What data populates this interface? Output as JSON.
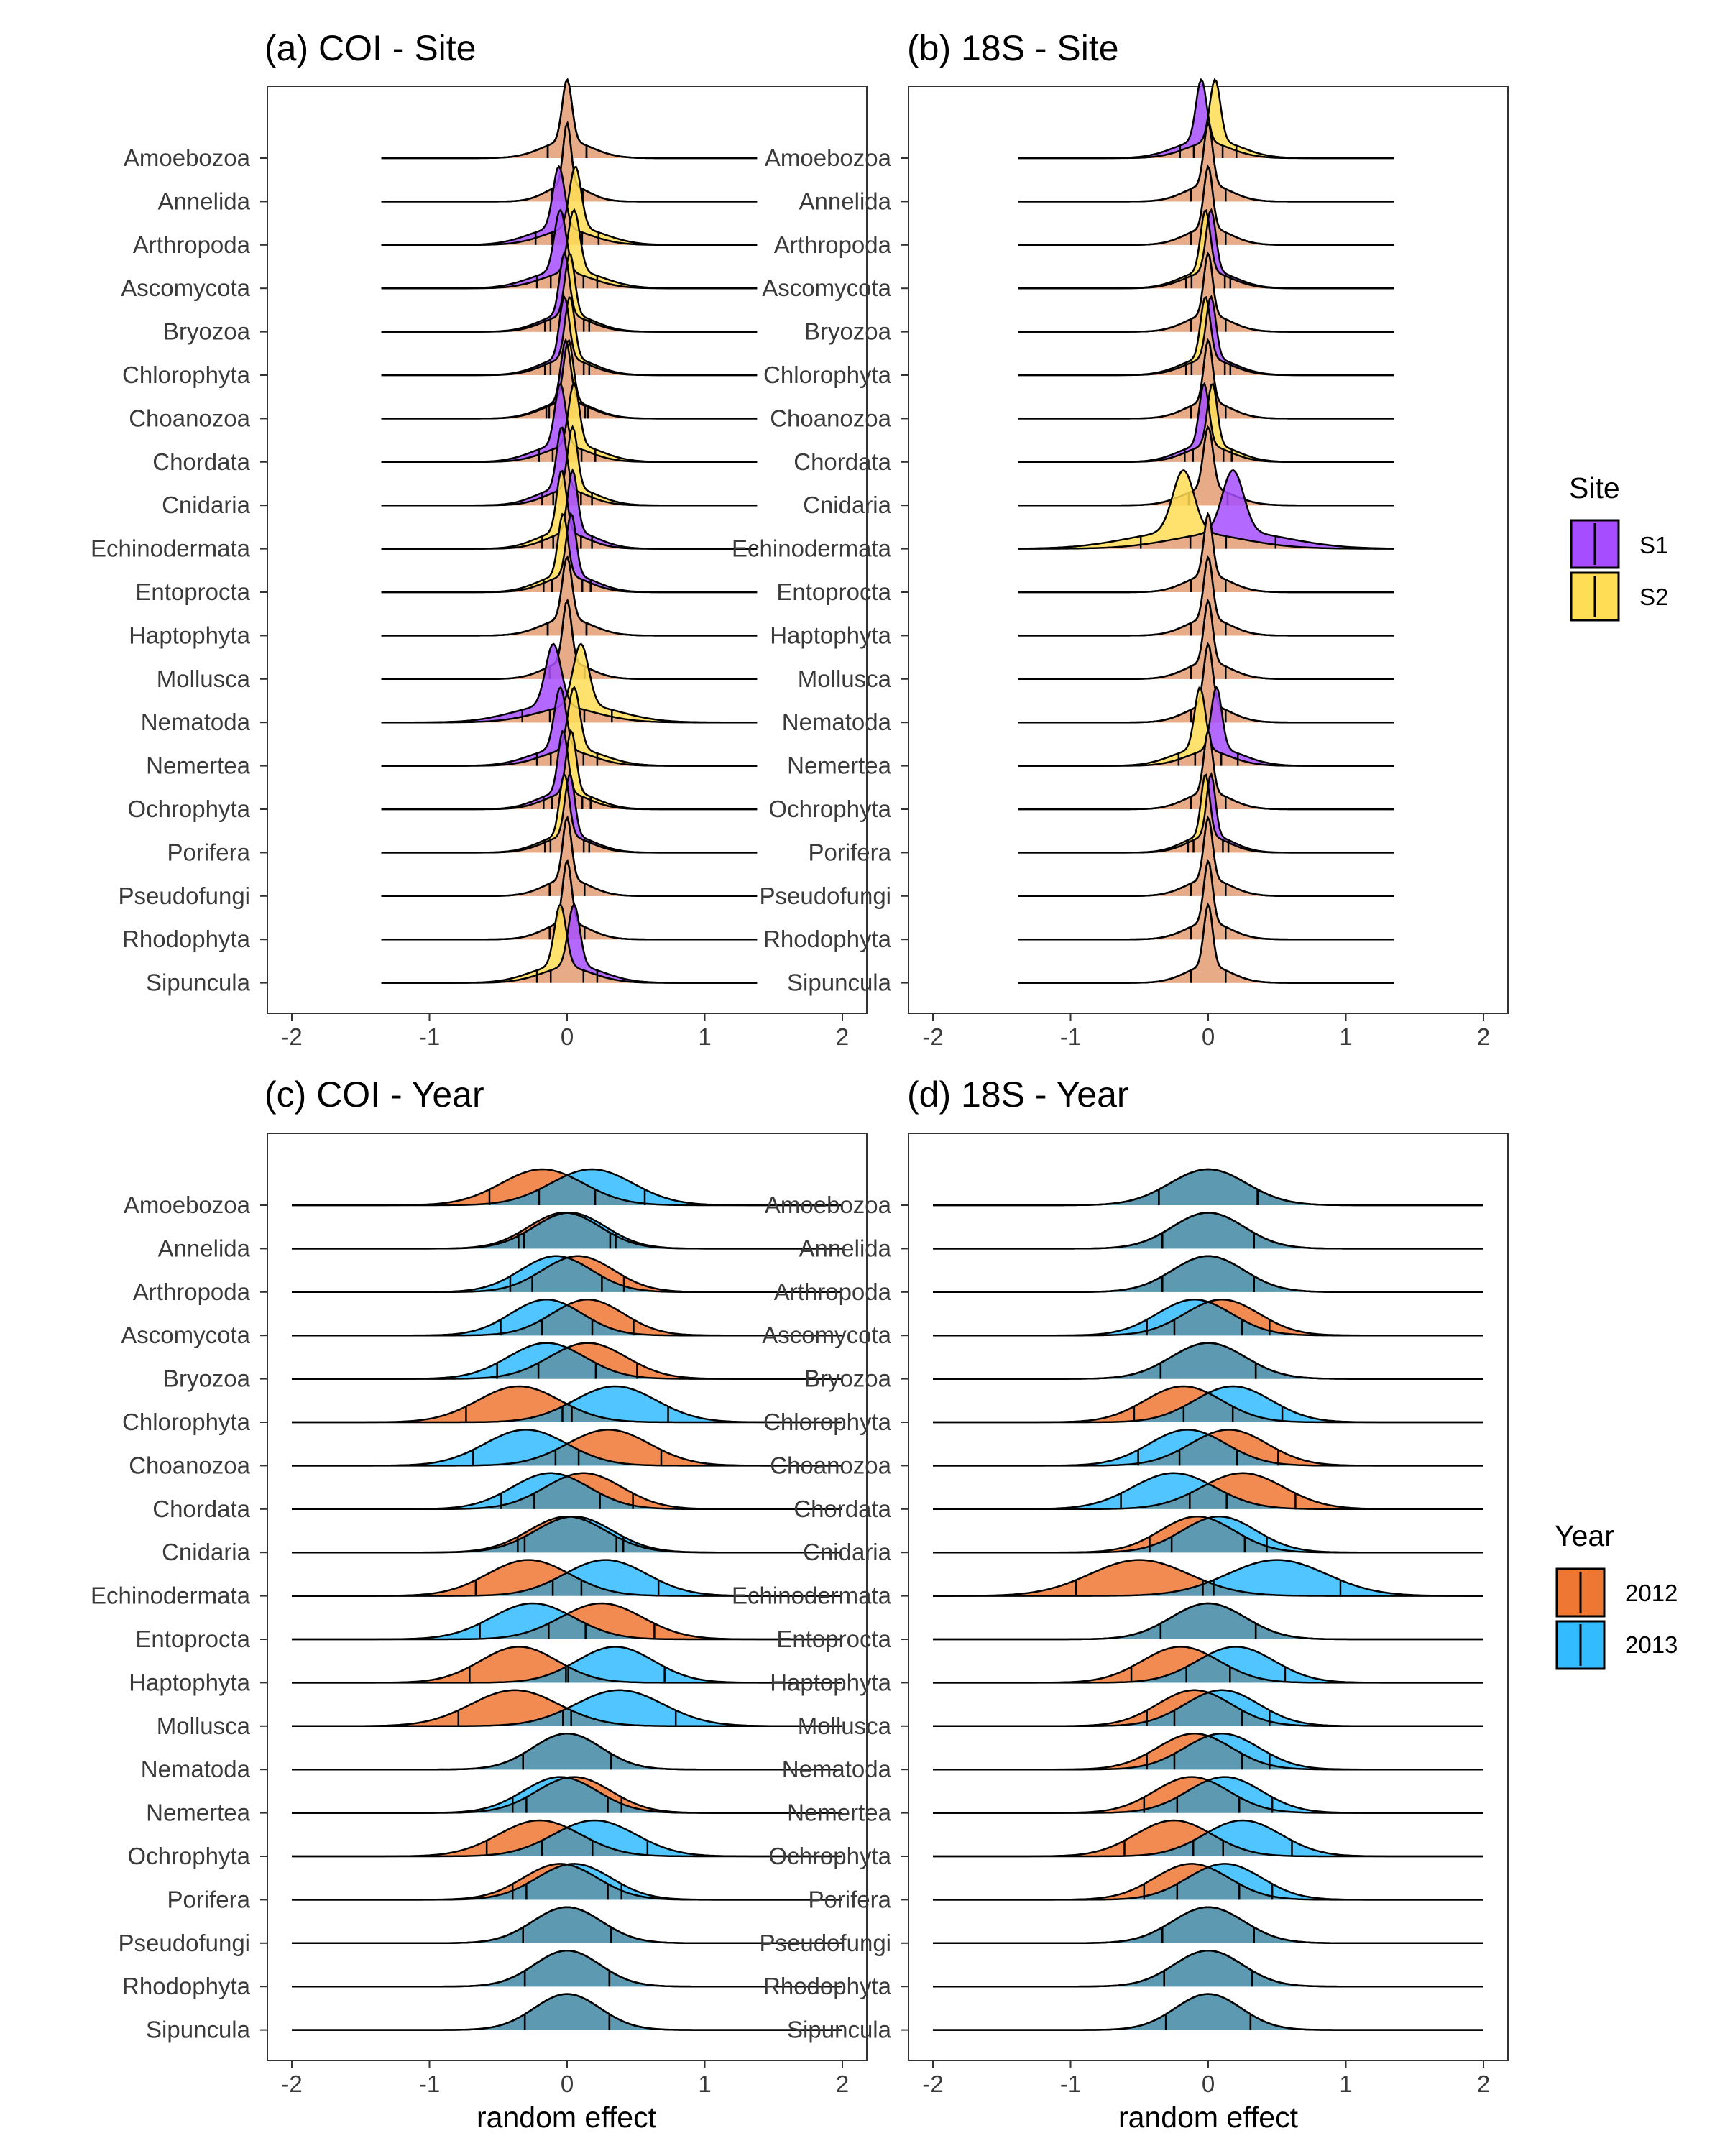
{
  "colors": {
    "S1": "#a64dff",
    "S2": "#ffdd55",
    "2012": "#ee7733",
    "2013": "#33bbff",
    "overlap_site": "#e8ab88",
    "overlap_year": "#5d9ab2",
    "outline": "#000000"
  },
  "chart_data": [
    {
      "type": "ridgeline",
      "title": "(a) COI - Site",
      "xlabel": "",
      "xlim": [
        -2,
        2
      ],
      "x_ticks": [
        "-2",
        "-1",
        "0",
        "1",
        "2"
      ],
      "categories": [
        "Amoebozoa",
        "Annelida",
        "Arthropoda",
        "Ascomycota",
        "Bryozoa",
        "Chlorophyta",
        "Choanozoa",
        "Chordata",
        "Cnidaria",
        "Echinodermata",
        "Entoproctа",
        "Haptophyta",
        "Mollusca",
        "Nematoda",
        "Nemertea",
        "Ochrophyta",
        "Porifera",
        "Pseudofungi",
        "Rhodophyta",
        "Sipuncula"
      ],
      "series": [
        {
          "name": "S1",
          "mean": [
            0.0,
            0.0,
            -0.06,
            -0.05,
            -0.02,
            -0.02,
            -0.01,
            -0.05,
            -0.04,
            0.04,
            0.03,
            0.0,
            0.0,
            -0.1,
            -0.05,
            -0.03,
            0.02,
            0.0,
            0.0,
            0.05
          ],
          "sd": [
            0.1,
            0.08,
            0.12,
            0.12,
            0.1,
            0.1,
            0.1,
            0.11,
            0.1,
            0.1,
            0.1,
            0.1,
            0.09,
            0.16,
            0.12,
            0.1,
            0.1,
            0.09,
            0.09,
            0.12
          ]
        },
        {
          "name": "S2",
          "mean": [
            0.0,
            0.0,
            0.06,
            0.05,
            0.02,
            0.02,
            0.01,
            0.05,
            0.04,
            -0.04,
            -0.03,
            0.0,
            0.0,
            0.1,
            0.05,
            0.03,
            -0.02,
            0.0,
            0.0,
            -0.05
          ],
          "sd": [
            0.1,
            0.08,
            0.12,
            0.12,
            0.1,
            0.1,
            0.1,
            0.11,
            0.1,
            0.1,
            0.1,
            0.1,
            0.09,
            0.16,
            0.12,
            0.1,
            0.1,
            0.09,
            0.09,
            0.12
          ]
        }
      ],
      "x_range": [
        -1.35,
        1.38
      ]
    },
    {
      "type": "ridgeline",
      "title": "(b) 18S - Site",
      "xlabel": "",
      "xlim": [
        -2,
        2
      ],
      "x_ticks": [
        "-2",
        "-1",
        "0",
        "1",
        "2"
      ],
      "categories": [
        "Amoebozoa",
        "Annelida",
        "Arthropoda",
        "Ascomycota",
        "Bryozoa",
        "Chlorophyta",
        "Choanozoa",
        "Chordata",
        "Cnidaria",
        "Echinodermata",
        "Entoprocta",
        "Haptophyta",
        "Mollusca",
        "Nematoda",
        "Nemertea",
        "Ochrophyta",
        "Porifera",
        "Pseudofungi",
        "Rhodophyta",
        "Sipuncula"
      ],
      "series": [
        {
          "name": "S1",
          "mean": [
            -0.05,
            0.0,
            0.0,
            0.02,
            0.0,
            0.02,
            0.0,
            -0.03,
            0.0,
            0.18,
            0.0,
            0.0,
            0.0,
            0.0,
            0.06,
            0.0,
            0.02,
            0.0,
            0.0,
            0.0
          ],
          "sd": [
            0.11,
            0.09,
            0.09,
            0.1,
            0.09,
            0.1,
            0.09,
            0.1,
            0.1,
            0.22,
            0.09,
            0.09,
            0.09,
            0.09,
            0.11,
            0.09,
            0.09,
            0.09,
            0.09,
            0.09
          ]
        },
        {
          "name": "S2",
          "mean": [
            0.05,
            0.0,
            0.0,
            -0.02,
            0.0,
            -0.02,
            0.0,
            0.03,
            0.0,
            -0.18,
            0.0,
            0.0,
            0.0,
            0.0,
            -0.06,
            0.0,
            -0.02,
            0.0,
            0.0,
            0.0
          ],
          "sd": [
            0.11,
            0.09,
            0.09,
            0.1,
            0.09,
            0.1,
            0.09,
            0.1,
            0.1,
            0.22,
            0.09,
            0.09,
            0.09,
            0.09,
            0.11,
            0.09,
            0.09,
            0.09,
            0.09,
            0.09
          ]
        }
      ],
      "x_range": [
        -1.38,
        1.35
      ]
    },
    {
      "type": "ridgeline",
      "title": "(c) COI - Year",
      "xlabel": "random effect",
      "xlim": [
        -2,
        2
      ],
      "x_ticks": [
        "-2",
        "-1",
        "0",
        "1",
        "2"
      ],
      "categories": [
        "Amoebozoa",
        "Annelida",
        "Arthropoda",
        "Ascomycota",
        "Bryozoa",
        "Chlorophyta",
        "Choanozoa",
        "Chordata",
        "Cnidaria",
        "Echinodermata",
        "Entoprocta",
        "Haptophyta",
        "Mollusca",
        "Nematoda",
        "Nemertea",
        "Ochrophyta",
        "Porifera",
        "Pseudofungi",
        "Rhodophyta",
        "Sipuncula"
      ],
      "series": [
        {
          "name": "2012",
          "mean": [
            -0.18,
            -0.02,
            0.08,
            0.15,
            0.15,
            -0.35,
            0.3,
            0.12,
            0.0,
            -0.28,
            0.25,
            -0.35,
            -0.38,
            0.0,
            0.05,
            -0.2,
            -0.05,
            0.0,
            0.0,
            0.0
          ],
          "sd": [
            0.3,
            0.26,
            0.26,
            0.26,
            0.28,
            0.3,
            0.3,
            0.28,
            0.28,
            0.3,
            0.3,
            0.28,
            0.32,
            0.25,
            0.27,
            0.3,
            0.27,
            0.25,
            0.24,
            0.24
          ]
        },
        {
          "name": "2013",
          "mean": [
            0.18,
            0.02,
            -0.08,
            -0.15,
            -0.15,
            0.35,
            -0.3,
            -0.12,
            0.05,
            0.28,
            -0.25,
            0.35,
            0.38,
            0.0,
            -0.05,
            0.2,
            0.05,
            0.0,
            0.0,
            0.0
          ],
          "sd": [
            0.3,
            0.26,
            0.26,
            0.26,
            0.28,
            0.3,
            0.3,
            0.28,
            0.28,
            0.3,
            0.3,
            0.28,
            0.32,
            0.25,
            0.27,
            0.3,
            0.27,
            0.25,
            0.24,
            0.24
          ]
        }
      ]
    },
    {
      "type": "ridgeline",
      "title": "(d) 18S - Year",
      "xlabel": "random effect",
      "xlim": [
        -2,
        2
      ],
      "x_ticks": [
        "-2",
        "-1",
        "0",
        "1",
        "2"
      ],
      "categories": [
        "Amoebozoa",
        "Annelida",
        "Arthropoda",
        "Ascomycota",
        "Bryozoa",
        "Chlorophyta",
        "Choanozoa",
        "Chordata",
        "Cnidaria",
        "Echinodermata",
        "Entoprocta",
        "Haptophyta",
        "Mollusca",
        "Nematoda",
        "Nemertea",
        "Ochrophyta",
        "Porifera",
        "Pseudofungi",
        "Rhodophyta",
        "Sipuncula"
      ],
      "series": [
        {
          "name": "2012",
          "mean": [
            0.0,
            0.0,
            0.0,
            0.1,
            0.0,
            -0.18,
            0.15,
            0.25,
            -0.08,
            -0.5,
            0.0,
            -0.2,
            -0.1,
            -0.1,
            -0.12,
            -0.25,
            -0.12,
            0.0,
            0.0,
            0.0
          ],
          "sd": [
            0.28,
            0.26,
            0.26,
            0.27,
            0.27,
            0.28,
            0.28,
            0.3,
            0.27,
            0.36,
            0.27,
            0.28,
            0.27,
            0.27,
            0.27,
            0.28,
            0.27,
            0.26,
            0.25,
            0.24
          ]
        },
        {
          "name": "2013",
          "mean": [
            0.0,
            0.0,
            0.0,
            -0.1,
            0.0,
            0.18,
            -0.15,
            -0.25,
            0.08,
            0.5,
            0.0,
            0.2,
            0.1,
            0.1,
            0.12,
            0.25,
            0.12,
            0.0,
            0.0,
            0.0
          ],
          "sd": [
            0.28,
            0.26,
            0.26,
            0.27,
            0.27,
            0.28,
            0.28,
            0.3,
            0.27,
            0.36,
            0.27,
            0.28,
            0.27,
            0.27,
            0.27,
            0.28,
            0.27,
            0.26,
            0.25,
            0.24
          ]
        }
      ]
    }
  ],
  "legends": {
    "site": {
      "title": "Site",
      "items": [
        "S1",
        "S2"
      ]
    },
    "year": {
      "title": "Year",
      "items": [
        "2012",
        "2013"
      ]
    }
  }
}
